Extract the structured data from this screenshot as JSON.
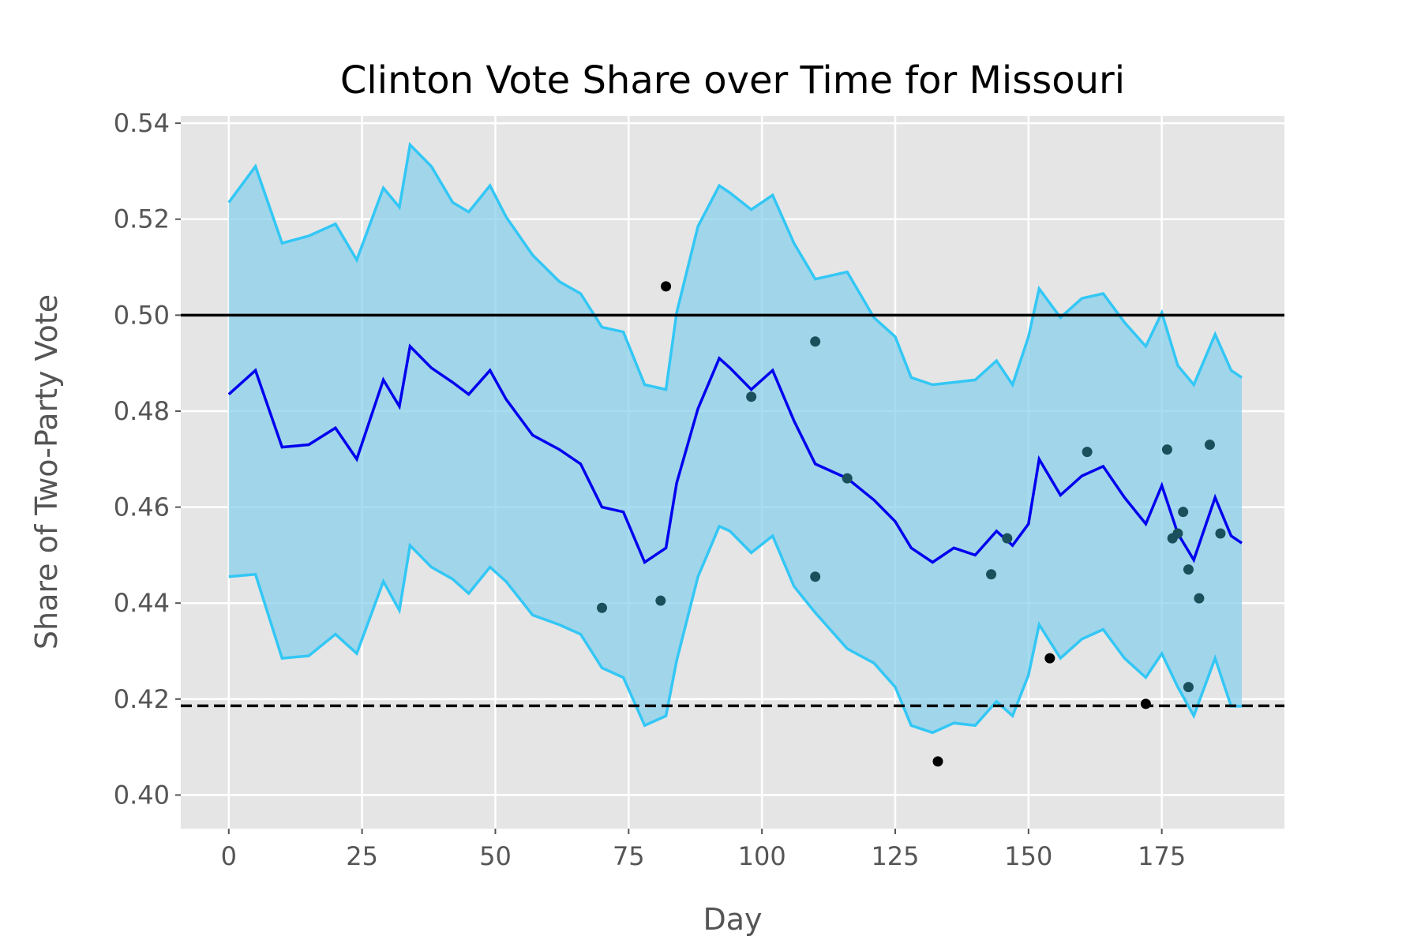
{
  "chart_data": {
    "type": "line",
    "title": "Clinton Vote Share over Time for Missouri",
    "xlabel": "Day",
    "ylabel": "Share of Two-Party Vote",
    "xlim": [
      -9,
      198
    ],
    "ylim": [
      0.393,
      0.5415
    ],
    "xticks": [
      0,
      25,
      50,
      75,
      100,
      125,
      150,
      175
    ],
    "xtick_labels": [
      "0",
      "25",
      "50",
      "75",
      "100",
      "125",
      "150",
      "175"
    ],
    "yticks": [
      0.4,
      0.42,
      0.44,
      0.46,
      0.48,
      0.5,
      0.52,
      0.54
    ],
    "ytick_labels": [
      "0.40",
      "0.42",
      "0.44",
      "0.46",
      "0.48",
      "0.50",
      "0.52",
      "0.54"
    ],
    "grid": true,
    "style": "ggplot",
    "colors": {
      "panel": "#e5e5e5",
      "grid": "#ffffff",
      "band_fill": "#87ceeb",
      "band_edge": "#33c7f5",
      "mean_line": "#0000ee",
      "points": "#1a4f5c",
      "reference": "#000000"
    },
    "reference_lines": [
      {
        "y": 0.5,
        "style": "solid"
      },
      {
        "y": 0.4186,
        "style": "dashed"
      }
    ],
    "series": [
      {
        "role": "mean",
        "x": [
          0,
          5,
          10,
          15,
          20,
          24,
          29,
          32,
          34,
          38,
          42,
          45,
          49,
          52,
          57,
          62,
          66,
          70,
          74,
          78,
          82,
          84,
          88,
          92,
          94,
          98,
          102,
          106,
          110,
          116,
          121,
          125,
          128,
          132,
          136,
          140,
          144,
          147,
          150,
          152,
          156,
          160,
          164,
          168,
          172,
          175,
          178,
          181,
          185,
          188,
          190
        ],
        "y": [
          0.4835,
          0.4885,
          0.4725,
          0.473,
          0.4765,
          0.47,
          0.4865,
          0.481,
          0.4935,
          0.489,
          0.486,
          0.4835,
          0.4885,
          0.4825,
          0.475,
          0.472,
          0.469,
          0.46,
          0.459,
          0.4485,
          0.4515,
          0.465,
          0.4805,
          0.491,
          0.489,
          0.4845,
          0.4885,
          0.478,
          0.469,
          0.466,
          0.4615,
          0.457,
          0.4515,
          0.4485,
          0.4515,
          0.45,
          0.455,
          0.452,
          0.4565,
          0.47,
          0.4625,
          0.4665,
          0.4685,
          0.462,
          0.4565,
          0.4645,
          0.4545,
          0.449,
          0.462,
          0.454,
          0.4525
        ]
      },
      {
        "role": "upper",
        "x": [
          0,
          5,
          10,
          15,
          20,
          24,
          29,
          32,
          34,
          38,
          42,
          45,
          49,
          52,
          57,
          62,
          66,
          70,
          74,
          78,
          82,
          84,
          88,
          92,
          94,
          98,
          102,
          106,
          110,
          116,
          121,
          125,
          128,
          132,
          136,
          140,
          144,
          147,
          150,
          152,
          156,
          160,
          164,
          168,
          172,
          175,
          178,
          181,
          185,
          188,
          190
        ],
        "y": [
          0.5235,
          0.531,
          0.515,
          0.5165,
          0.519,
          0.5115,
          0.5265,
          0.5225,
          0.5355,
          0.531,
          0.5235,
          0.5215,
          0.527,
          0.5205,
          0.5125,
          0.507,
          0.5045,
          0.4975,
          0.4965,
          0.4855,
          0.4845,
          0.5005,
          0.5185,
          0.527,
          0.5255,
          0.522,
          0.525,
          0.515,
          0.5075,
          0.509,
          0.4995,
          0.4955,
          0.487,
          0.4855,
          0.486,
          0.4865,
          0.4905,
          0.4855,
          0.4955,
          0.5055,
          0.4995,
          0.5035,
          0.5045,
          0.4985,
          0.4935,
          0.5005,
          0.4895,
          0.4855,
          0.496,
          0.4885,
          0.487
        ]
      },
      {
        "role": "lower",
        "x": [
          0,
          5,
          10,
          15,
          20,
          24,
          29,
          32,
          34,
          38,
          42,
          45,
          49,
          52,
          57,
          62,
          66,
          70,
          74,
          78,
          82,
          84,
          88,
          92,
          94,
          98,
          102,
          106,
          110,
          116,
          121,
          125,
          128,
          132,
          136,
          140,
          144,
          147,
          150,
          152,
          156,
          160,
          164,
          168,
          172,
          175,
          178,
          181,
          185,
          188,
          190
        ],
        "y": [
          0.4455,
          0.446,
          0.4285,
          0.429,
          0.4335,
          0.4295,
          0.4445,
          0.4385,
          0.452,
          0.4475,
          0.445,
          0.442,
          0.4475,
          0.4445,
          0.4375,
          0.4355,
          0.4335,
          0.4265,
          0.4245,
          0.4145,
          0.4165,
          0.428,
          0.4455,
          0.456,
          0.455,
          0.4505,
          0.454,
          0.4435,
          0.438,
          0.4305,
          0.4275,
          0.4225,
          0.4145,
          0.413,
          0.415,
          0.4145,
          0.4195,
          0.4165,
          0.425,
          0.4355,
          0.4285,
          0.4325,
          0.4345,
          0.4285,
          0.4245,
          0.4295,
          0.4225,
          0.4165,
          0.4285,
          0.4185,
          0.4185
        ]
      }
    ],
    "points": [
      {
        "x": 70,
        "y": 0.439,
        "color": "#1a4f5c"
      },
      {
        "x": 81,
        "y": 0.4405,
        "color": "#1a4f5c"
      },
      {
        "x": 82,
        "y": 0.506,
        "color": "#000000"
      },
      {
        "x": 98,
        "y": 0.483,
        "color": "#1a4f5c"
      },
      {
        "x": 110,
        "y": 0.4945,
        "color": "#1a4f5c"
      },
      {
        "x": 110,
        "y": 0.4455,
        "color": "#1a4f5c"
      },
      {
        "x": 116,
        "y": 0.466,
        "color": "#1a4f5c"
      },
      {
        "x": 133,
        "y": 0.407,
        "color": "#000000"
      },
      {
        "x": 143,
        "y": 0.446,
        "color": "#1a4f5c"
      },
      {
        "x": 146,
        "y": 0.4535,
        "color": "#1a4f5c"
      },
      {
        "x": 154,
        "y": 0.4285,
        "color": "#000000"
      },
      {
        "x": 161,
        "y": 0.4715,
        "color": "#1a4f5c"
      },
      {
        "x": 172,
        "y": 0.419,
        "color": "#000000"
      },
      {
        "x": 176,
        "y": 0.472,
        "color": "#1a4f5c"
      },
      {
        "x": 177,
        "y": 0.4535,
        "color": "#1a4f5c"
      },
      {
        "x": 178,
        "y": 0.4545,
        "color": "#1a4f5c"
      },
      {
        "x": 179,
        "y": 0.459,
        "color": "#1a4f5c"
      },
      {
        "x": 180,
        "y": 0.447,
        "color": "#1a4f5c"
      },
      {
        "x": 180,
        "y": 0.4225,
        "color": "#1a4f5c"
      },
      {
        "x": 182,
        "y": 0.441,
        "color": "#1a4f5c"
      },
      {
        "x": 184,
        "y": 0.473,
        "color": "#1a4f5c"
      },
      {
        "x": 186,
        "y": 0.4545,
        "color": "#1a4f5c"
      }
    ]
  }
}
